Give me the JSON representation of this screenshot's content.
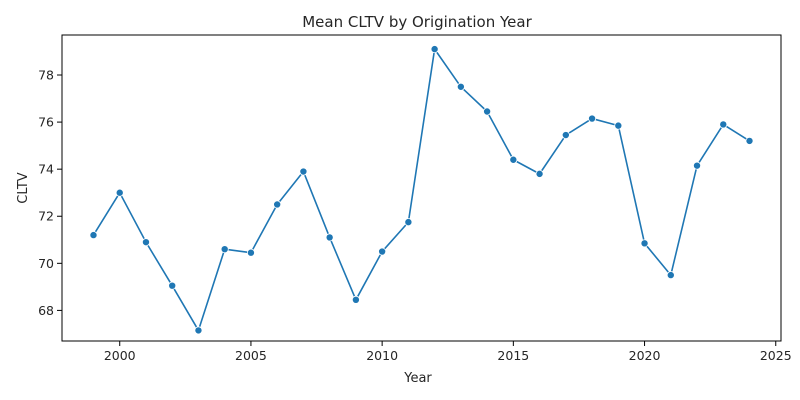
{
  "chart_data": {
    "type": "line",
    "title": "Mean CLTV by Origination Year",
    "xlabel": "Year",
    "ylabel": "CLTV",
    "xlim": [
      1997.8,
      2025.2
    ],
    "ylim": [
      66.7,
      79.7
    ],
    "xticks": [
      "2000",
      "2005",
      "2010",
      "2015",
      "2020",
      "2025"
    ],
    "yticks": [
      "68",
      "70",
      "72",
      "74",
      "76",
      "78"
    ],
    "grid": false,
    "colors": {
      "line": "#1f77b4",
      "marker": "#1f77b4",
      "marker_edge": "#ffffff",
      "axis": "#000000"
    },
    "series": [
      {
        "x": [
          1999,
          2000,
          2001,
          2002,
          2003,
          2004,
          2005,
          2006,
          2007,
          2008,
          2009,
          2010,
          2011,
          2012,
          2013,
          2014,
          2015,
          2016,
          2017,
          2018,
          2019,
          2020,
          2021,
          2022,
          2023,
          2024
        ],
        "values": [
          71.2,
          73.0,
          70.9,
          69.05,
          67.15,
          70.6,
          70.45,
          72.5,
          73.9,
          71.1,
          68.45,
          70.5,
          71.75,
          79.1,
          77.5,
          76.45,
          74.4,
          73.8,
          75.45,
          76.15,
          75.85,
          70.85,
          69.5,
          74.15,
          75.9,
          75.2
        ]
      }
    ]
  }
}
